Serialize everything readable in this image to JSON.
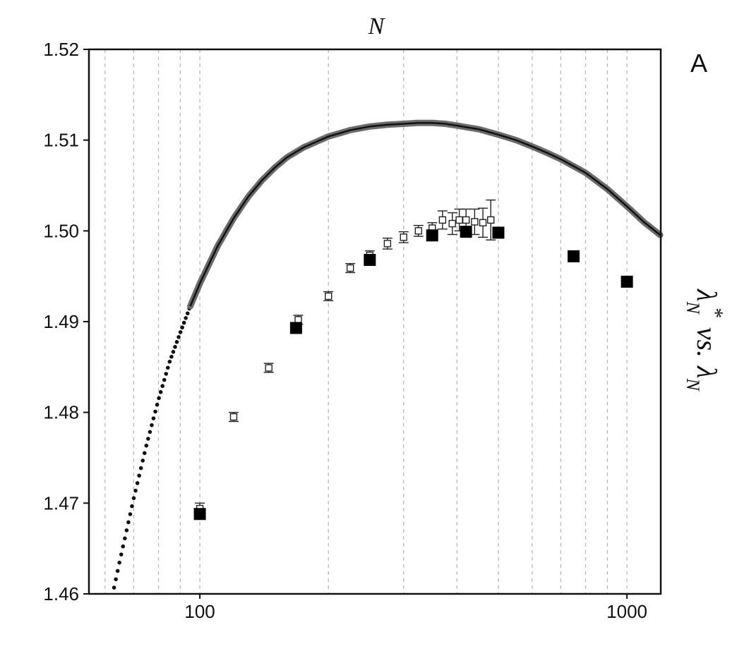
{
  "chart_data": {
    "type": "scatter",
    "title": "N",
    "panel_label": "A",
    "ylabel": "λ*_N vs. λ_N",
    "ylabel_parts": {
      "lambda1": "λ",
      "star": "*",
      "sub1": "N",
      "vs": "vs.",
      "lambda2": "λ",
      "sub2": "N"
    },
    "x_scale": "log",
    "xlim": [
      55,
      1200
    ],
    "ylim": [
      1.46,
      1.52
    ],
    "x_ticks": [
      100,
      1000
    ],
    "x_tick_labels": [
      "100",
      "1000"
    ],
    "y_ticks": [
      1.46,
      1.47,
      1.48,
      1.49,
      1.5,
      1.51,
      1.52
    ],
    "y_tick_labels": [
      "1.46",
      "1.47",
      "1.48",
      "1.49",
      "1.50",
      "1.51",
      "1.52"
    ],
    "grid": {
      "vertical": true,
      "horizontal": false,
      "style": "dashed"
    },
    "colors": {
      "curve": "#111111",
      "curve_band": "#6b6b6b",
      "grid": "#b8b8b8",
      "axis": "#111111",
      "filled_marker": "#000000"
    },
    "series": [
      {
        "kind": "curve",
        "x": [
          60,
          65,
          70,
          75,
          80,
          85,
          90,
          95,
          100,
          110,
          120,
          130,
          140,
          150,
          160,
          175,
          200,
          225,
          250,
          275,
          300,
          325,
          350,
          375,
          400,
          450,
          500,
          550,
          600,
          650,
          700,
          800,
          900,
          1000,
          1100,
          1200
        ],
        "y": [
          1.4561,
          1.4637,
          1.4705,
          1.4764,
          1.4814,
          1.4856,
          1.4888,
          1.4917,
          1.4942,
          1.4983,
          1.5014,
          1.5038,
          1.5056,
          1.507,
          1.5081,
          1.5092,
          1.5104,
          1.5111,
          1.5115,
          1.5117,
          1.5118,
          1.5119,
          1.5119,
          1.5118,
          1.5116,
          1.5112,
          1.5106,
          1.51,
          1.5093,
          1.5086,
          1.5079,
          1.5064,
          1.5046,
          1.5027,
          1.5009,
          1.4995
        ]
      },
      {
        "kind": "open_squares_with_error",
        "x": [
          100,
          120,
          145,
          170,
          200,
          225,
          250,
          275,
          300,
          325,
          350,
          370,
          390,
          405,
          420,
          440,
          460,
          480
        ],
        "y": [
          1.4694,
          1.4795,
          1.4849,
          1.4902,
          1.4928,
          1.4959,
          1.4973,
          1.4986,
          1.4993,
          1.5,
          1.5003,
          1.5012,
          1.5008,
          1.5012,
          1.5012,
          1.501,
          1.5009,
          1.5012
        ],
        "err": [
          0.0006,
          0.0005,
          0.0005,
          0.0005,
          0.0005,
          0.0005,
          0.0005,
          0.0006,
          0.0006,
          0.0006,
          0.0006,
          0.001,
          0.0012,
          0.0012,
          0.0012,
          0.0014,
          0.0016,
          0.0022
        ]
      },
      {
        "kind": "filled_squares",
        "x": [
          100,
          168,
          250,
          350,
          420,
          500,
          750,
          1000
        ],
        "y": [
          1.4688,
          1.4893,
          1.4968,
          1.4995,
          1.4999,
          1.4998,
          1.4972,
          1.4944
        ]
      }
    ]
  }
}
